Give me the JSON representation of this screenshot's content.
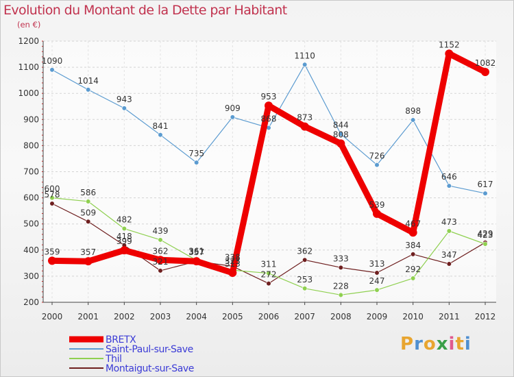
{
  "title": "Evolution du Montant de la Dette par Habitant",
  "subtitle": "(en €)",
  "logo": {
    "letters": [
      "P",
      "r",
      "o",
      "x",
      "i",
      "t",
      "i"
    ],
    "colors": [
      "#e8a530",
      "#4f8fd0",
      "#e8a530",
      "#3a9f48",
      "#e05a8f",
      "#e8a530",
      "#4f8fd0"
    ]
  },
  "chart_data": {
    "type": "line",
    "title": "Evolution du Montant de la Dette par Habitant",
    "subtitle": "(en €)",
    "x": [
      "2000",
      "2001",
      "2002",
      "2003",
      "2004",
      "2005",
      "2006",
      "2007",
      "2008",
      "2009",
      "2010",
      "2011",
      "2012"
    ],
    "y_ticks": [
      "200",
      "300",
      "400",
      "500",
      "600",
      "700",
      "800",
      "900",
      "1000",
      "1100",
      "1200"
    ],
    "ylim": [
      200,
      1200
    ],
    "grid": true,
    "legend_position": "bottom-left",
    "series": [
      {
        "name": "BRETX",
        "color": "#ee0000",
        "stroke": 9,
        "point_radius": 6,
        "values": [
          359,
          357,
          399,
          362,
          357,
          313,
          953,
          873,
          808,
          539,
          467,
          1152,
          1082
        ],
        "labels": [
          "359",
          "357",
          "399",
          "362",
          "357",
          "313",
          "953",
          "873",
          "808",
          "539",
          "467",
          "1152",
          "1082"
        ]
      },
      {
        "name": "Saint-Paul-sur-Save",
        "color": "#5b9bd0",
        "stroke": 1.2,
        "point_radius": 3.3,
        "values": [
          1090,
          1014,
          943,
          841,
          735,
          909,
          868,
          1110,
          844,
          726,
          898,
          646,
          617
        ],
        "labels": [
          "1090",
          "1014",
          "943",
          "841",
          "735",
          "909",
          "868",
          "1110",
          "844",
          "726",
          "898",
          "646",
          "617"
        ]
      },
      {
        "name": "Thil",
        "color": "#8fd050",
        "stroke": 1.2,
        "point_radius": 3.3,
        "values": [
          600,
          586,
          482,
          439,
          361,
          323,
          311,
          253,
          228,
          247,
          292,
          473,
          423
        ],
        "labels": [
          "600",
          "586",
          "482",
          "439",
          "361",
          "323",
          "311",
          "253",
          "228",
          "247",
          "292",
          "473",
          "423"
        ]
      },
      {
        "name": "Montaigut-sur-Save",
        "color": "#6e1f1f",
        "stroke": 1.2,
        "point_radius": 3.3,
        "values": [
          578,
          509,
          418,
          321,
          357,
          338,
          272,
          362,
          333,
          313,
          384,
          347,
          429
        ],
        "labels": [
          "578",
          "509",
          "418",
          "321",
          "357",
          "338",
          "272",
          "362",
          "333",
          "313",
          "384",
          "347",
          "429"
        ]
      }
    ]
  }
}
